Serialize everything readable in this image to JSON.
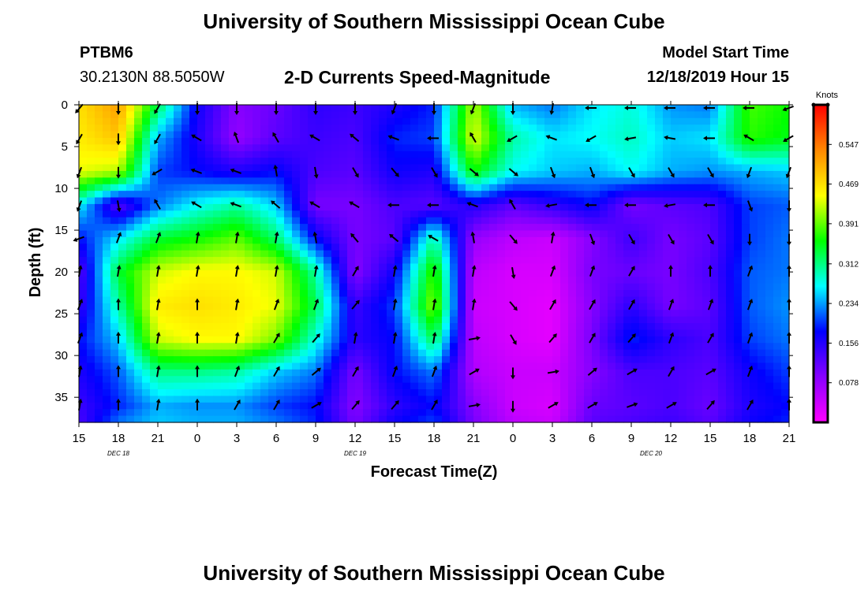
{
  "page": {
    "title_top": "University of Southern Mississippi Ocean Cube",
    "title_bottom": "University of Southern Mississippi Ocean Cube",
    "station_id": "PTBM6",
    "station_coords": "30.2130N 88.5050W",
    "subtitle": "2-D Currents Speed-Magnitude",
    "model_start_label": "Model Start Time",
    "model_start_value": "12/18/2019 Hour 15"
  },
  "chart_data": {
    "type": "heatmap",
    "title": "2-D Currents Speed-Magnitude",
    "xlabel": "Forecast Time(Z)",
    "ylabel": "Depth (ft)",
    "x_hours": [
      0,
      3,
      6,
      9,
      12,
      15,
      18,
      21,
      24,
      27,
      30,
      33,
      36,
      39,
      42,
      45,
      48,
      51,
      54
    ],
    "x_tick_labels": [
      "15",
      "18",
      "21",
      "0",
      "3",
      "6",
      "9",
      "12",
      "15",
      "18",
      "21",
      "0",
      "3",
      "6",
      "9",
      "12",
      "15",
      "18",
      "21"
    ],
    "date_labels": [
      {
        "text": "DEC 18",
        "x_hour": 3
      },
      {
        "text": "DEC 19",
        "x_hour": 21
      },
      {
        "text": "DEC 20",
        "x_hour": 43.5
      }
    ],
    "y_ticks": [
      0,
      5,
      10,
      15,
      20,
      25,
      30,
      35
    ],
    "ylim": [
      0,
      38
    ],
    "xlim": [
      0,
      54
    ],
    "colorbar": {
      "label": "Knots",
      "ticks": [
        "0.547",
        "0.469",
        "0.391",
        "0.312",
        "0.234",
        "0.156",
        "0.078"
      ],
      "tick_values": [
        0.547,
        0.469,
        0.391,
        0.312,
        0.234,
        0.156,
        0.078
      ],
      "range": [
        0,
        0.625
      ],
      "colors": [
        "#ff00ff",
        "#8800ff",
        "#0000ff",
        "#00ffff",
        "#00ff00",
        "#ffff00",
        "#ff8800",
        "#ff0000"
      ]
    },
    "speed_grid": {
      "units": "knots",
      "depths_ft": [
        0,
        4,
        8,
        12,
        16,
        20,
        24,
        28,
        32,
        36,
        38
      ],
      "hours": [
        0,
        3,
        6,
        9,
        12,
        15,
        18,
        21,
        24,
        27,
        30,
        33,
        36,
        39,
        42,
        45,
        48,
        51,
        54
      ],
      "rows": [
        [
          0.47,
          0.52,
          0.33,
          0.17,
          0.09,
          0.11,
          0.15,
          0.14,
          0.16,
          0.19,
          0.42,
          0.24,
          0.22,
          0.26,
          0.28,
          0.23,
          0.22,
          0.38,
          0.36
        ],
        [
          0.46,
          0.49,
          0.24,
          0.16,
          0.08,
          0.12,
          0.14,
          0.13,
          0.19,
          0.2,
          0.44,
          0.3,
          0.26,
          0.27,
          0.29,
          0.25,
          0.26,
          0.37,
          0.35
        ],
        [
          0.44,
          0.42,
          0.2,
          0.18,
          0.16,
          0.18,
          0.13,
          0.12,
          0.17,
          0.16,
          0.36,
          0.27,
          0.25,
          0.24,
          0.27,
          0.24,
          0.23,
          0.24,
          0.25
        ],
        [
          0.27,
          0.12,
          0.22,
          0.27,
          0.3,
          0.25,
          0.1,
          0.1,
          0.13,
          0.12,
          0.16,
          0.12,
          0.15,
          0.18,
          0.1,
          0.12,
          0.13,
          0.2,
          0.21
        ],
        [
          0.18,
          0.26,
          0.34,
          0.36,
          0.39,
          0.32,
          0.18,
          0.1,
          0.12,
          0.3,
          0.08,
          0.05,
          0.04,
          0.09,
          0.14,
          0.1,
          0.12,
          0.2,
          0.22
        ],
        [
          0.12,
          0.34,
          0.43,
          0.45,
          0.45,
          0.43,
          0.3,
          0.09,
          0.17,
          0.38,
          0.05,
          0.03,
          0.03,
          0.1,
          0.11,
          0.1,
          0.13,
          0.21,
          0.22
        ],
        [
          0.14,
          0.3,
          0.46,
          0.47,
          0.46,
          0.44,
          0.33,
          0.14,
          0.2,
          0.41,
          0.04,
          0.03,
          0.02,
          0.09,
          0.15,
          0.1,
          0.12,
          0.21,
          0.23
        ],
        [
          0.18,
          0.25,
          0.43,
          0.45,
          0.45,
          0.4,
          0.28,
          0.15,
          0.18,
          0.33,
          0.05,
          0.03,
          0.02,
          0.1,
          0.19,
          0.15,
          0.13,
          0.2,
          0.22
        ],
        [
          0.16,
          0.21,
          0.31,
          0.31,
          0.3,
          0.25,
          0.22,
          0.1,
          0.18,
          0.22,
          0.06,
          0.04,
          0.04,
          0.09,
          0.13,
          0.13,
          0.12,
          0.17,
          0.2
        ],
        [
          0.14,
          0.19,
          0.24,
          0.23,
          0.23,
          0.2,
          0.18,
          0.09,
          0.15,
          0.18,
          0.09,
          0.04,
          0.03,
          0.11,
          0.12,
          0.13,
          0.11,
          0.16,
          0.18
        ],
        [
          0.13,
          0.22,
          0.25,
          0.24,
          0.24,
          0.22,
          0.19,
          0.1,
          0.17,
          0.2,
          0.1,
          0.05,
          0.04,
          0.12,
          0.13,
          0.14,
          0.12,
          0.17,
          0.19
        ]
      ]
    },
    "vectors": {
      "depths_ft": [
        0,
        4,
        8,
        12,
        16,
        20,
        24,
        28,
        32,
        36
      ],
      "hours": [
        0,
        3,
        6,
        9,
        12,
        15,
        18,
        21,
        24,
        27,
        30,
        33,
        36,
        39,
        42,
        45,
        48,
        51,
        54
      ],
      "direction_deg": [
        [
          220,
          180,
          210,
          180,
          180,
          180,
          180,
          180,
          200,
          180,
          200,
          180,
          190,
          270,
          270,
          270,
          270,
          270,
          250
        ],
        [
          210,
          180,
          210,
          300,
          340,
          330,
          300,
          310,
          290,
          270,
          330,
          240,
          290,
          240,
          260,
          280,
          270,
          300,
          240
        ],
        [
          200,
          180,
          240,
          290,
          290,
          350,
          170,
          150,
          140,
          150,
          130,
          130,
          160,
          160,
          150,
          150,
          150,
          200,
          200
        ],
        [
          200,
          170,
          330,
          300,
          290,
          310,
          300,
          300,
          270,
          270,
          290,
          330,
          260,
          270,
          270,
          260,
          270,
          160,
          180
        ],
        [
          250,
          20,
          20,
          10,
          10,
          10,
          350,
          320,
          310,
          300,
          350,
          140,
          10,
          160,
          150,
          150,
          150,
          180,
          180
        ],
        [
          10,
          10,
          10,
          10,
          10,
          10,
          10,
          30,
          10,
          10,
          10,
          170,
          20,
          20,
          30,
          0,
          0,
          20,
          0
        ],
        [
          20,
          0,
          10,
          0,
          10,
          20,
          20,
          40,
          10,
          10,
          10,
          140,
          30,
          30,
          30,
          20,
          20,
          20,
          0
        ],
        [
          20,
          0,
          10,
          0,
          10,
          30,
          40,
          10,
          10,
          10,
          80,
          150,
          40,
          30,
          40,
          20,
          30,
          20,
          0
        ],
        [
          10,
          0,
          10,
          0,
          20,
          30,
          50,
          30,
          20,
          20,
          60,
          180,
          80,
          50,
          60,
          30,
          60,
          20,
          0
        ],
        [
          10,
          0,
          10,
          0,
          30,
          30,
          60,
          40,
          40,
          30,
          80,
          180,
          60,
          60,
          70,
          60,
          40,
          30,
          0
        ]
      ]
    }
  }
}
